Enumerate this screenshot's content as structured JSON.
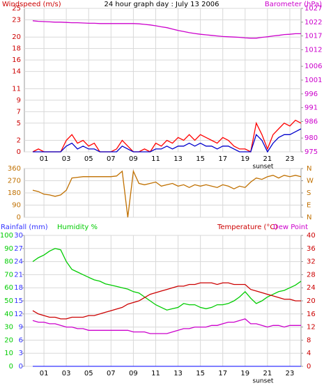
{
  "chart_data": [
    {
      "type": "line",
      "title": "24 hour graph day : July 13 2006",
      "y_label": "Windspeed (m/s)",
      "y2_label": "Barometer (hPa)",
      "x": [
        0,
        0.5,
        1,
        1.5,
        2,
        2.5,
        3,
        3.5,
        4,
        4.5,
        5,
        5.5,
        6,
        6.5,
        7,
        7.5,
        8,
        8.5,
        9,
        9.5,
        10,
        10.5,
        11,
        11.5,
        12,
        12.5,
        13,
        13.5,
        14,
        14.5,
        15,
        15.5,
        16,
        16.5,
        17,
        17.5,
        18,
        18.5,
        19,
        19.5,
        20,
        20.5,
        21,
        21.5,
        22,
        22.5,
        23,
        23.5,
        24
      ],
      "xlim": [
        -0.75,
        24
      ],
      "xticks": [
        {
          "value": 1,
          "label": "01"
        },
        {
          "value": 3,
          "label": "03"
        },
        {
          "value": 5,
          "label": "05"
        },
        {
          "value": 7,
          "label": "07"
        },
        {
          "value": 9,
          "label": "09"
        },
        {
          "value": 11,
          "label": "11"
        },
        {
          "value": 13,
          "label": "13"
        },
        {
          "value": 15,
          "label": "15"
        },
        {
          "value": 17,
          "label": "17"
        },
        {
          "value": 19,
          "label": "19"
        },
        {
          "value": 21,
          "label": "21"
        },
        {
          "value": 23,
          "label": "23"
        }
      ],
      "ylim": [
        0,
        25
      ],
      "yticks": [
        0,
        2,
        5,
        7,
        9,
        11,
        14,
        16,
        18,
        20,
        23,
        25
      ],
      "y2lim": [
        975,
        1027
      ],
      "y2ticks": [
        975,
        980,
        986,
        991,
        996,
        1001,
        1006,
        1012,
        1017,
        1022,
        1027
      ],
      "grid": true,
      "annotations": [
        {
          "text": "sunset",
          "x": 20.6
        }
      ],
      "series": [
        {
          "color": "#ff0000",
          "axis": "y",
          "values": [
            0,
            0.5,
            0,
            0,
            0,
            0,
            2,
            3,
            1.5,
            2,
            1,
            1.5,
            0,
            0,
            0,
            0.5,
            2,
            1,
            0,
            0,
            0.5,
            0,
            1.5,
            1,
            2,
            1.5,
            2.5,
            2,
            3,
            2,
            3,
            2.5,
            2,
            1.5,
            2.5,
            2,
            1,
            0.5,
            0.5,
            0,
            5,
            3,
            0.5,
            3,
            4,
            5,
            4.5,
            5.5,
            5
          ]
        },
        {
          "color": "#0000cc",
          "axis": "y",
          "values": [
            0,
            0,
            0,
            0,
            0,
            0,
            1,
            1.5,
            0.5,
            1,
            0.5,
            0.5,
            0,
            0,
            0,
            0,
            1,
            0.5,
            0,
            0,
            0,
            0,
            0.5,
            0.5,
            1,
            0.5,
            1,
            1,
            1.5,
            1,
            1.5,
            1,
            1,
            0.5,
            1,
            1,
            0.5,
            0,
            0,
            0,
            3,
            2,
            0,
            1.5,
            2.5,
            3,
            3,
            3.5,
            4
          ]
        },
        {
          "color": "#cc00cc",
          "axis": "y2",
          "values": [
            1022.5,
            1022.3,
            1022.2,
            1022.1,
            1022,
            1022,
            1021.9,
            1021.8,
            1021.8,
            1021.7,
            1021.6,
            1021.6,
            1021.5,
            1021.5,
            1021.5,
            1021.5,
            1021.5,
            1021.5,
            1021.5,
            1021.4,
            1021.2,
            1021,
            1020.7,
            1020.3,
            1020,
            1019.5,
            1019,
            1018.6,
            1018.2,
            1017.9,
            1017.6,
            1017.4,
            1017.2,
            1017,
            1016.8,
            1016.7,
            1016.6,
            1016.5,
            1016.3,
            1016.2,
            1016.2,
            1016.5,
            1016.7,
            1017,
            1017.2,
            1017.5,
            1017.6,
            1017.8,
            1017.8
          ]
        }
      ]
    },
    {
      "type": "line",
      "x": [
        0,
        0.5,
        1,
        1.5,
        2,
        2.5,
        3,
        3.5,
        4,
        4.5,
        5,
        5.5,
        6,
        6.5,
        7,
        7.5,
        8,
        8.5,
        9,
        9.5,
        10,
        10.5,
        11,
        11.5,
        12,
        12.5,
        13,
        13.5,
        14,
        14.5,
        15,
        15.5,
        16,
        16.5,
        17,
        17.5,
        18,
        18.5,
        19,
        19.5,
        20,
        20.5,
        21,
        21.5,
        22,
        22.5,
        23,
        23.5,
        24
      ],
      "xlim": [
        -0.75,
        24
      ],
      "xticks": [
        {
          "value": 1,
          "label": "01"
        },
        {
          "value": 3,
          "label": "03"
        },
        {
          "value": 5,
          "label": "05"
        },
        {
          "value": 7,
          "label": "07"
        },
        {
          "value": 9,
          "label": "09"
        },
        {
          "value": 11,
          "label": "11"
        },
        {
          "value": 13,
          "label": "13"
        },
        {
          "value": 15,
          "label": "15"
        },
        {
          "value": 17,
          "label": "17"
        },
        {
          "value": 19,
          "label": "19"
        },
        {
          "value": 21,
          "label": "21"
        },
        {
          "value": 23,
          "label": "23"
        }
      ],
      "ylim": [
        0,
        360
      ],
      "yticks": [
        0,
        90,
        180,
        270,
        360
      ],
      "y2lim": [
        0,
        360
      ],
      "y2ticks": [
        {
          "value": 360,
          "label": "N"
        },
        {
          "value": 270,
          "label": "W"
        },
        {
          "value": 180,
          "label": "S"
        },
        {
          "value": 90,
          "label": "E"
        },
        {
          "value": 0,
          "label": "N"
        }
      ],
      "grid": true,
      "series": [
        {
          "color": "#c07000",
          "axis": "y",
          "values": [
            200,
            190,
            170,
            165,
            155,
            165,
            200,
            290,
            295,
            300,
            300,
            300,
            300,
            300,
            300,
            305,
            340,
            0,
            340,
            250,
            240,
            250,
            260,
            230,
            240,
            250,
            230,
            240,
            220,
            240,
            230,
            240,
            230,
            220,
            240,
            230,
            210,
            230,
            220,
            260,
            290,
            280,
            300,
            310,
            290,
            310,
            300,
            310,
            300
          ]
        }
      ]
    },
    {
      "type": "line",
      "x": [
        0,
        0.5,
        1,
        1.5,
        2,
        2.5,
        3,
        3.5,
        4,
        4.5,
        5,
        5.5,
        6,
        6.5,
        7,
        7.5,
        8,
        8.5,
        9,
        9.5,
        10,
        10.5,
        11,
        11.5,
        12,
        12.5,
        13,
        13.5,
        14,
        14.5,
        15,
        15.5,
        16,
        16.5,
        17,
        17.5,
        18,
        18.5,
        19,
        19.5,
        20,
        20.5,
        21,
        21.5,
        22,
        22.5,
        23,
        23.5,
        24
      ],
      "xlim": [
        -0.75,
        24
      ],
      "xticks": [
        {
          "value": 1,
          "label": "01"
        },
        {
          "value": 3,
          "label": "03"
        },
        {
          "value": 5,
          "label": "05"
        },
        {
          "value": 7,
          "label": "07"
        },
        {
          "value": 9,
          "label": "09"
        },
        {
          "value": 11,
          "label": "11"
        },
        {
          "value": 13,
          "label": "13"
        },
        {
          "value": 15,
          "label": "15"
        },
        {
          "value": 17,
          "label": "17"
        },
        {
          "value": 19,
          "label": "19"
        },
        {
          "value": 21,
          "label": "21"
        },
        {
          "value": 23,
          "label": "23"
        }
      ],
      "ylim": [
        0,
        100
      ],
      "yticks": [
        0,
        10,
        20,
        30,
        40,
        50,
        60,
        70,
        80,
        90,
        100
      ],
      "y2lim": [
        0,
        40
      ],
      "y2ticks": [
        0,
        4,
        8,
        12,
        16,
        20,
        24,
        28,
        32,
        36,
        40
      ],
      "y3lim": [
        0,
        30
      ],
      "y3ticks": [
        0,
        3,
        6,
        9,
        12,
        15,
        18,
        21,
        24,
        27,
        30
      ],
      "grid": true,
      "annotations": [
        {
          "text": "sunset",
          "x": 20.6
        }
      ],
      "series": [
        {
          "name": "Rainfall (mm)",
          "color": "#3333ff",
          "axis": "y3",
          "values": [
            0,
            0,
            0,
            0,
            0,
            0,
            0,
            0,
            0,
            0,
            0,
            0,
            0,
            0,
            0,
            0,
            0,
            0,
            0,
            0,
            0,
            0,
            0,
            0,
            0,
            0,
            0,
            0,
            0,
            0,
            0,
            0,
            0,
            0,
            0,
            0,
            0,
            0,
            0,
            0,
            0,
            0,
            0,
            0,
            0,
            0,
            0,
            0,
            0
          ]
        },
        {
          "name": "Humidity %",
          "color": "#00cc00",
          "axis": "y",
          "values": [
            80,
            83,
            85,
            88,
            90,
            89,
            80,
            74,
            72,
            70,
            68,
            66,
            65,
            63,
            62,
            61,
            60,
            59,
            57,
            56,
            53,
            50,
            47,
            45,
            43,
            44,
            45,
            48,
            47,
            47,
            45,
            44,
            45,
            47,
            47,
            48,
            50,
            53,
            57,
            52,
            48,
            50,
            53,
            55,
            57,
            58,
            60,
            62,
            65
          ]
        },
        {
          "name": "Temperature (°C)",
          "color": "#cc0000",
          "axis": "y2",
          "values": [
            17,
            16,
            15.5,
            15,
            15,
            14.5,
            14.5,
            15,
            15,
            15,
            15.5,
            15.5,
            16,
            16.5,
            17,
            17.5,
            18,
            19,
            19.5,
            20,
            21,
            22,
            22.5,
            23,
            23.5,
            24,
            24.5,
            24.5,
            25,
            25,
            25.5,
            25.5,
            25.5,
            25,
            25.5,
            25.5,
            25,
            25,
            25,
            23.5,
            23,
            22.5,
            22,
            21.5,
            21,
            20.5,
            20.5,
            20,
            20
          ]
        },
        {
          "name": "Dew Point",
          "color": "#cc00cc",
          "axis": "y2",
          "values": [
            14,
            13.5,
            13.5,
            13,
            13,
            12.5,
            12,
            12,
            11.5,
            11.5,
            11,
            11,
            11,
            11,
            11,
            11,
            11,
            11,
            10.5,
            10.5,
            10.5,
            10,
            10,
            10,
            10,
            10.5,
            11,
            11.5,
            11.5,
            12,
            12,
            12,
            12.5,
            12.5,
            13,
            13.5,
            13.5,
            14,
            14.5,
            13,
            13,
            12.5,
            12,
            12.5,
            12.5,
            12,
            12.5,
            12.5,
            12.5
          ]
        }
      ]
    }
  ]
}
